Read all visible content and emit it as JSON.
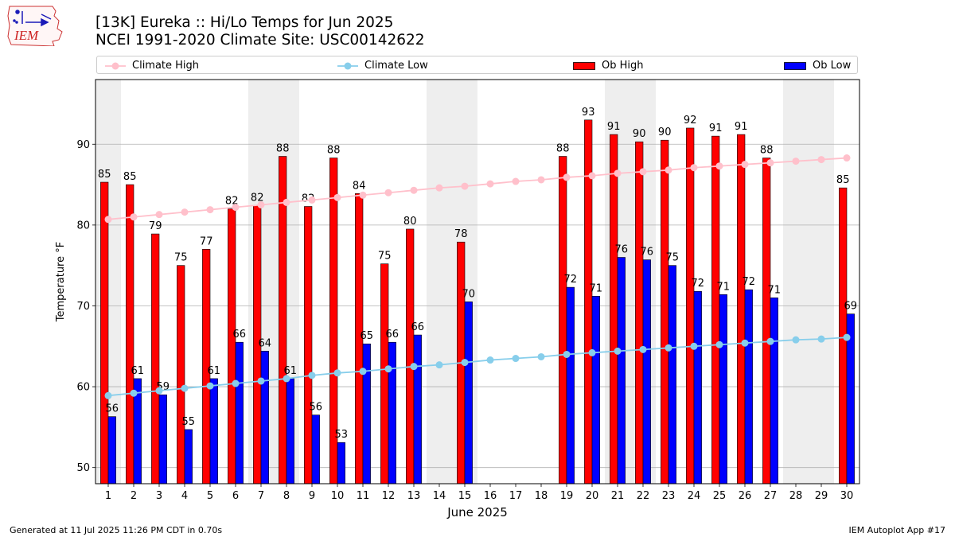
{
  "header": {
    "title_line1": "[13K] Eureka :: Hi/Lo Temps for Jun 2025",
    "title_line2": "NCEI 1991-2020 Climate Site: USC00142622",
    "logo_text": "IEM"
  },
  "legend": {
    "climate_high": "Climate High",
    "climate_low": "Climate Low",
    "ob_high": "Ob High",
    "ob_low": "Ob Low"
  },
  "footer": {
    "generated": "Generated at 11 Jul 2025 11:26 PM CDT in 0.70s",
    "app": "IEM Autoplot App #17"
  },
  "chart_data": {
    "type": "bar",
    "title": "[13K] Eureka :: Hi/Lo Temps for Jun 2025",
    "subtitle": "NCEI 1991-2020 Climate Site: USC00142622",
    "xlabel": "June 2025",
    "ylabel": "Temperature °F",
    "ylim": [
      48,
      98
    ],
    "yticks": [
      50,
      60,
      70,
      80,
      90
    ],
    "grid": true,
    "legend_position": "top",
    "days": [
      1,
      2,
      3,
      4,
      5,
      6,
      7,
      8,
      9,
      10,
      11,
      12,
      13,
      14,
      15,
      16,
      17,
      18,
      19,
      20,
      21,
      22,
      23,
      24,
      25,
      26,
      27,
      28,
      29,
      30
    ],
    "shaded_weekend_days": [
      1,
      7,
      8,
      14,
      15,
      21,
      22,
      28,
      29
    ],
    "series": [
      {
        "name": "Ob High",
        "kind": "bar",
        "color": "#ff0000",
        "values": [
          85.3,
          85.0,
          78.9,
          75.0,
          77.0,
          82.0,
          82.4,
          88.5,
          82.3,
          88.3,
          83.9,
          75.2,
          79.5,
          null,
          77.9,
          null,
          null,
          null,
          88.5,
          93.0,
          91.2,
          90.3,
          90.5,
          92.0,
          91.0,
          91.2,
          88.3,
          null,
          null,
          84.6
        ],
        "labels": [
          85,
          85,
          79,
          75,
          77,
          82,
          82,
          88,
          82,
          88,
          84,
          75,
          80,
          null,
          78,
          null,
          null,
          null,
          88,
          93,
          91,
          90,
          90,
          92,
          91,
          91,
          88,
          null,
          null,
          85
        ]
      },
      {
        "name": "Ob Low",
        "kind": "bar",
        "color": "#0000ff",
        "values": [
          56.3,
          61.0,
          59.0,
          54.7,
          61.0,
          65.5,
          64.4,
          61.0,
          56.5,
          53.1,
          65.3,
          65.5,
          66.4,
          null,
          70.5,
          null,
          null,
          null,
          72.3,
          71.2,
          76.0,
          75.7,
          75.0,
          71.8,
          71.4,
          72.0,
          71.0,
          null,
          null,
          69.0
        ],
        "labels": [
          56,
          61,
          59,
          55,
          61,
          66,
          64,
          61,
          56,
          53,
          65,
          66,
          66,
          null,
          70,
          null,
          null,
          null,
          72,
          71,
          76,
          76,
          75,
          72,
          71,
          72,
          71,
          null,
          null,
          69
        ]
      },
      {
        "name": "Climate High",
        "kind": "line",
        "color": "#ffc0cb",
        "values": [
          80.7,
          81.0,
          81.3,
          81.6,
          81.9,
          82.2,
          82.5,
          82.8,
          83.1,
          83.4,
          83.7,
          84.0,
          84.3,
          84.6,
          84.8,
          85.1,
          85.4,
          85.6,
          85.9,
          86.1,
          86.4,
          86.6,
          86.8,
          87.1,
          87.3,
          87.5,
          87.7,
          87.9,
          88.1,
          88.3
        ]
      },
      {
        "name": "Climate Low",
        "kind": "line",
        "color": "#87ceeb",
        "values": [
          58.9,
          59.2,
          59.5,
          59.8,
          60.1,
          60.4,
          60.7,
          61.0,
          61.4,
          61.7,
          61.9,
          62.2,
          62.5,
          62.7,
          63.0,
          63.3,
          63.5,
          63.7,
          64.0,
          64.2,
          64.4,
          64.6,
          64.8,
          65.0,
          65.2,
          65.4,
          65.6,
          65.8,
          65.9,
          66.1
        ]
      }
    ]
  }
}
